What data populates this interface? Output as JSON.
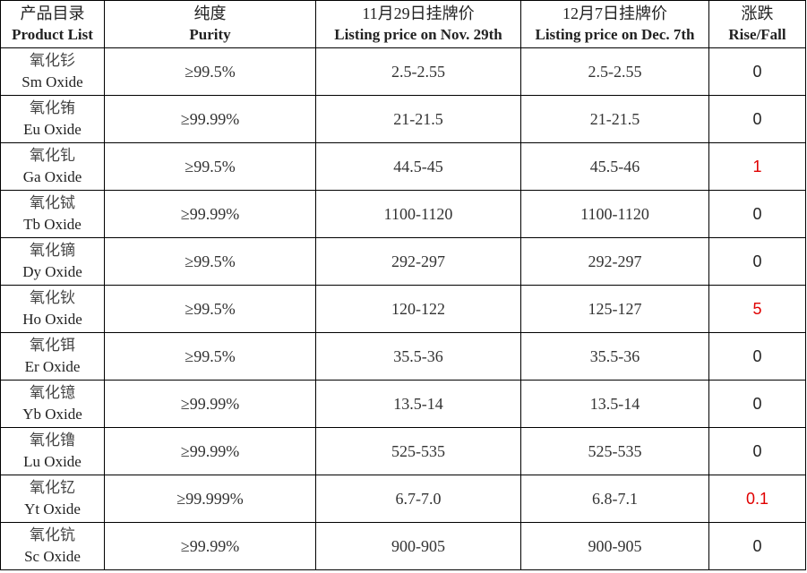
{
  "headers": [
    {
      "zh": "产品目录",
      "en": "Product List"
    },
    {
      "zh": "纯度",
      "en": "Purity"
    },
    {
      "zh": "11月29日挂牌价",
      "en": "Listing price on Nov. 29th"
    },
    {
      "zh": "12月7日挂牌价",
      "en": "Listing price on Dec. 7th"
    },
    {
      "zh": "涨跌",
      "en": "Rise/Fall"
    }
  ],
  "rows": [
    {
      "zh": "氧化钐",
      "en": "Sm Oxide",
      "purity": "≥99.5%",
      "nov29": "2.5-2.55",
      "dec7": "2.5-2.55",
      "change": "0",
      "up": false
    },
    {
      "zh": "氧化铕",
      "en": "Eu Oxide",
      "purity": "≥99.99%",
      "nov29": "21-21.5",
      "dec7": "21-21.5",
      "change": "0",
      "up": false
    },
    {
      "zh": "氧化钆",
      "en": "Ga Oxide",
      "purity": "≥99.5%",
      "nov29": "44.5-45",
      "dec7": "45.5-46",
      "change": "1",
      "up": true
    },
    {
      "zh": "氧化铽",
      "en": "Tb Oxide",
      "purity": "≥99.99%",
      "nov29": "1100-1120",
      "dec7": "1100-1120",
      "change": "0",
      "up": false
    },
    {
      "zh": "氧化镝",
      "en": "Dy Oxide",
      "purity": "≥99.5%",
      "nov29": "292-297",
      "dec7": "292-297",
      "change": "0",
      "up": false
    },
    {
      "zh": "氧化钬",
      "en": "Ho Oxide",
      "purity": "≥99.5%",
      "nov29": "120-122",
      "dec7": "125-127",
      "change": "5",
      "up": true
    },
    {
      "zh": "氧化铒",
      "en": "Er Oxide",
      "purity": "≥99.5%",
      "nov29": "35.5-36",
      "dec7": "35.5-36",
      "change": "0",
      "up": false
    },
    {
      "zh": "氧化镱",
      "en": "Yb Oxide",
      "purity": "≥99.99%",
      "nov29": "13.5-14",
      "dec7": "13.5-14",
      "change": "0",
      "up": false
    },
    {
      "zh": "氧化镥",
      "en": "Lu Oxide",
      "purity": "≥99.99%",
      "nov29": "525-535",
      "dec7": "525-535",
      "change": "0",
      "up": false
    },
    {
      "zh": "氧化钇",
      "en": "Yt Oxide",
      "purity": "≥99.999%",
      "nov29": "6.7-7.0",
      "dec7": "6.8-7.1",
      "change": "0.1",
      "up": true
    },
    {
      "zh": "氧化钪",
      "en": "Sc Oxide",
      "purity": "≥99.99%",
      "nov29": "900-905",
      "dec7": "900-905",
      "change": "0",
      "up": false
    }
  ],
  "colors": {
    "rise": "#e00000",
    "border": "#000000",
    "text": "#222222"
  }
}
